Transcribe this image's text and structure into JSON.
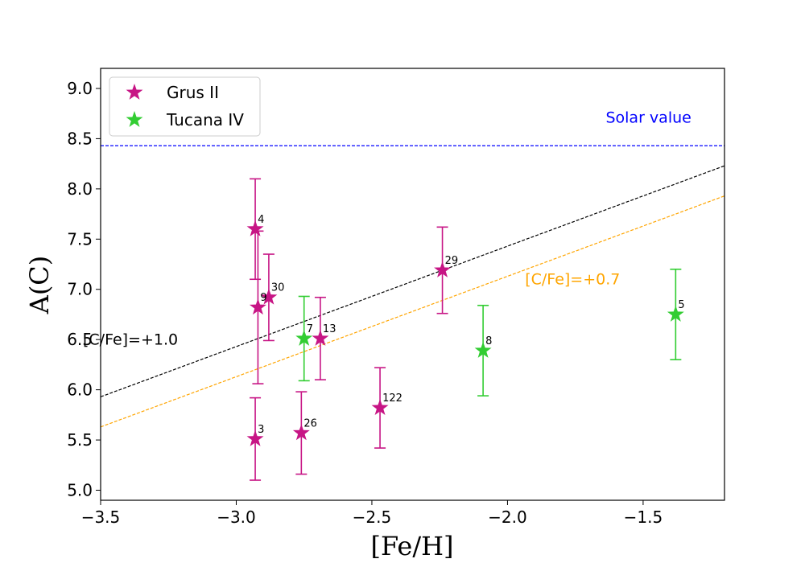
{
  "chart_data": {
    "type": "scatter",
    "title": "",
    "xlabel": "[Fe/H]",
    "ylabel": "A(C)",
    "xlim": [
      -3.5,
      -1.2
    ],
    "ylim": [
      4.9,
      9.2
    ],
    "xticks": [
      -3.5,
      -3.0,
      -2.5,
      -2.0,
      -1.5
    ],
    "xtick_labels": [
      "−3.5",
      "−3.0",
      "−2.5",
      "−2.0",
      "−1.5"
    ],
    "yticks": [
      5.0,
      5.5,
      6.0,
      6.5,
      7.0,
      7.5,
      8.0,
      8.5,
      9.0
    ],
    "ytick_labels": [
      "5.0",
      "5.5",
      "6.0",
      "6.5",
      "7.0",
      "7.5",
      "8.0",
      "8.5",
      "9.0"
    ],
    "grid": false,
    "legend_position": "top-left",
    "series": [
      {
        "name": "Grus II",
        "color": "#c71585",
        "marker": "star-icon",
        "points": [
          {
            "label": "4",
            "x": -2.93,
            "y": 7.6,
            "yerr": 0.5
          },
          {
            "label": "9",
            "x": -2.92,
            "y": 6.82,
            "yerr": 0.76
          },
          {
            "label": "30",
            "x": -2.88,
            "y": 6.92,
            "yerr": 0.43
          },
          {
            "label": "13",
            "x": -2.69,
            "y": 6.51,
            "yerr": 0.41
          },
          {
            "label": "29",
            "x": -2.24,
            "y": 7.19,
            "yerr": 0.43
          },
          {
            "label": "3",
            "x": -2.93,
            "y": 5.51,
            "yerr": 0.41
          },
          {
            "label": "26",
            "x": -2.76,
            "y": 5.57,
            "yerr": 0.41
          },
          {
            "label": "122",
            "x": -2.47,
            "y": 5.82,
            "yerr": 0.4
          }
        ]
      },
      {
        "name": "Tucana IV",
        "color": "#32cd32",
        "marker": "star-icon",
        "points": [
          {
            "label": "7",
            "x": -2.75,
            "y": 6.51,
            "yerr": 0.42
          },
          {
            "label": "8",
            "x": -2.09,
            "y": 6.39,
            "yerr": 0.45
          },
          {
            "label": "5",
            "x": -1.38,
            "y": 6.75,
            "yerr": 0.45
          }
        ]
      }
    ],
    "reference_lines": [
      {
        "name": "solar",
        "label": "Solar value",
        "color": "#0000ff",
        "y": 8.43
      },
      {
        "name": "cfe-1",
        "label": "[C/Fe]=+1.0",
        "color": "#000000",
        "cfe": 1.0,
        "solar": 8.43
      },
      {
        "name": "cfe-07",
        "label": "[C/Fe]=+0.7",
        "color": "#ffa500",
        "cfe": 0.7,
        "solar": 8.43
      }
    ],
    "annotations": {
      "solar": {
        "text": "Solar value",
        "x": -1.48,
        "y": 8.66
      },
      "cfe1": {
        "text": "[C/Fe]=+1.0",
        "x": -3.39,
        "y": 6.45
      },
      "cfe07": {
        "text": "[C/Fe]=+0.7",
        "x": -1.76,
        "y": 7.05
      }
    }
  }
}
